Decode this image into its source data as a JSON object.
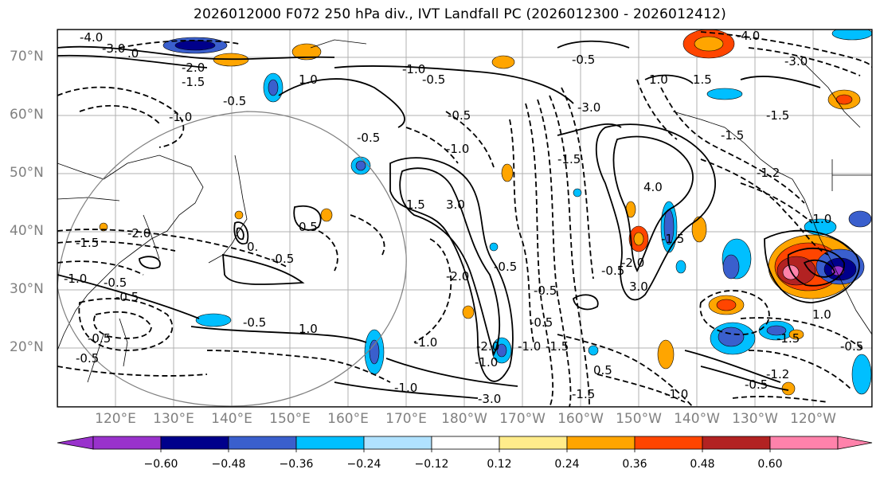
{
  "title": "2026012000 F072 250 hPa div., IVT Landfall PC (2026012300 - 2026012412)",
  "lat_labels": [
    "70°N",
    "60°N",
    "50°N",
    "40°N",
    "30°N",
    "20°N"
  ],
  "lon_labels": [
    "120°E",
    "130°E",
    "140°E",
    "150°E",
    "160°E",
    "170°E",
    "180°W",
    "170°W",
    "160°W",
    "150°W",
    "140°W",
    "130°W",
    "120°W"
  ],
  "colorbar": {
    "ticks": [
      "−0.60",
      "−0.48",
      "−0.36",
      "−0.24",
      "−0.12",
      "0.12",
      "0.24",
      "0.36",
      "0.48",
      "0.60"
    ],
    "colors": [
      "#9932cc",
      "#00008b",
      "#3a5fcd",
      "#00bfff",
      "#b0e2ff",
      "#ffffff",
      "#ffec8b",
      "#ffa500",
      "#ff4500",
      "#b22222",
      "#ff82ab"
    ]
  },
  "contour_labels": [
    "4.0",
    "3.0",
    "2.0",
    "1.5",
    "1.0",
    "0.5",
    "-0.5",
    "-1.0",
    "-1.5",
    "-2.0",
    "-3.0",
    "-4.0"
  ]
}
